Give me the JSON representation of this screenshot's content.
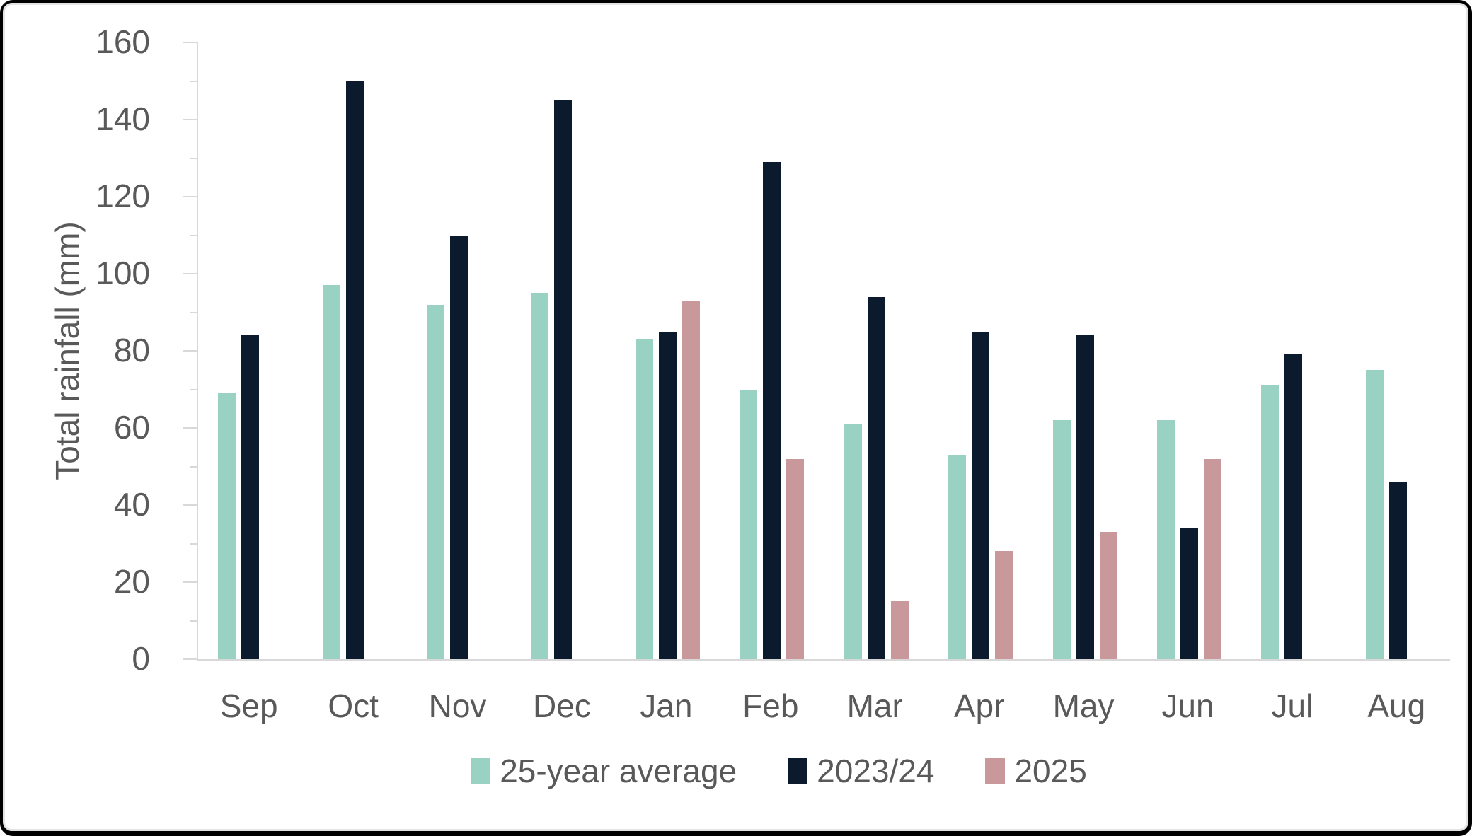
{
  "chart_data": {
    "type": "bar",
    "title": "",
    "xlabel": "",
    "ylabel": "Total rainfall (mm)",
    "ylim": [
      0,
      160
    ],
    "y_major_step": 20,
    "y_minor_step": 10,
    "y_tick_labels": [
      "0",
      "20",
      "40",
      "60",
      "80",
      "100",
      "120",
      "140",
      "160"
    ],
    "grid": false,
    "legend_position": "bottom",
    "categories": [
      "Sep",
      "Oct",
      "Nov",
      "Dec",
      "Jan",
      "Feb",
      "Mar",
      "Apr",
      "May",
      "Jun",
      "Jul",
      "Aug"
    ],
    "series": [
      {
        "name": "25-year average",
        "color": "#99D1C2",
        "values": [
          69,
          97,
          92,
          95,
          83,
          70,
          61,
          53,
          62,
          62,
          71,
          75
        ]
      },
      {
        "name": "2023/24",
        "color": "#0C1A2E",
        "values": [
          84,
          150,
          110,
          145,
          85,
          129,
          94,
          85,
          84,
          34,
          79,
          46
        ]
      },
      {
        "name": "2025",
        "color": "#C9989A",
        "values": [
          null,
          null,
          null,
          null,
          93,
          52,
          15,
          28,
          33,
          52,
          null,
          null
        ]
      }
    ]
  },
  "colors": {
    "axis_line": "#D8D8D8",
    "tick_text": "#595959",
    "outer_border": "#000000",
    "inner_border": "#E4E4E4",
    "background": "#FFFFFF"
  }
}
